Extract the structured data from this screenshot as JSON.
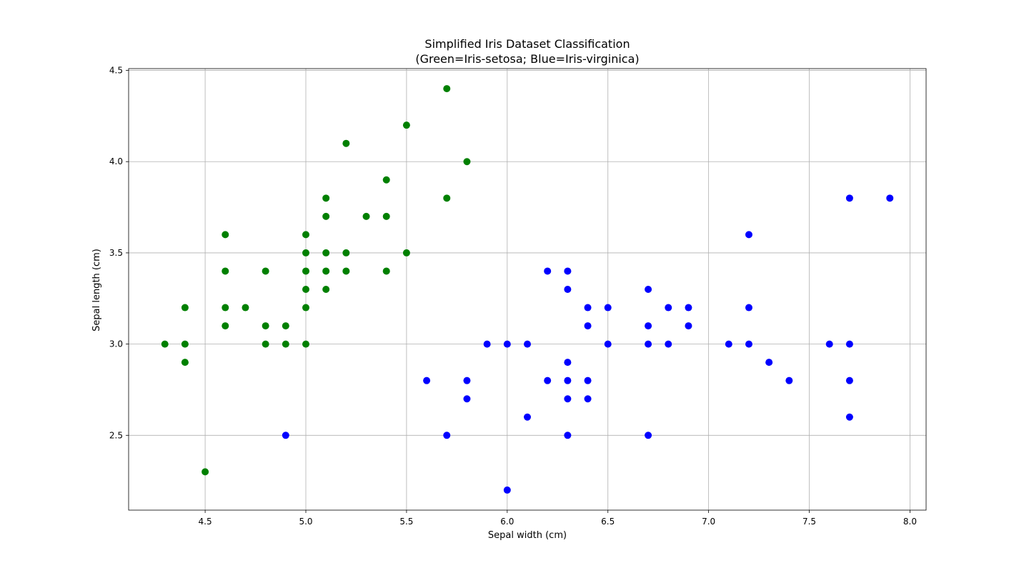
{
  "chart_data": {
    "type": "scatter",
    "title": "Simplified Iris Dataset Classification",
    "subtitle": "(Green=Iris-setosa; Blue=Iris-virginica)",
    "xlabel": "Sepal width (cm)",
    "ylabel": "Sepal length (cm)",
    "xlim": [
      4.12,
      8.08
    ],
    "ylim": [
      2.09,
      4.51
    ],
    "xticks": [
      4.5,
      5.0,
      5.5,
      6.0,
      6.5,
      7.0,
      7.5,
      8.0
    ],
    "xtick_labels": [
      "4.5",
      "5.0",
      "5.5",
      "6.0",
      "6.5",
      "7.0",
      "7.5",
      "8.0"
    ],
    "yticks": [
      2.5,
      3.0,
      3.5,
      4.0,
      4.5
    ],
    "ytick_labels": [
      "2.5",
      "3.0",
      "3.5",
      "4.0",
      "4.5"
    ],
    "grid": true,
    "series": [
      {
        "color": "#008000",
        "points": [
          [
            4.3,
            3.0
          ],
          [
            4.4,
            3.2
          ],
          [
            4.4,
            3.0
          ],
          [
            4.4,
            2.9
          ],
          [
            4.5,
            2.3
          ],
          [
            4.6,
            3.6
          ],
          [
            4.6,
            3.4
          ],
          [
            4.6,
            3.2
          ],
          [
            4.6,
            3.1
          ],
          [
            4.7,
            3.2
          ],
          [
            4.8,
            3.4
          ],
          [
            4.8,
            3.1
          ],
          [
            4.8,
            3.0
          ],
          [
            4.9,
            3.1
          ],
          [
            4.9,
            3.0
          ],
          [
            5.0,
            3.6
          ],
          [
            5.0,
            3.5
          ],
          [
            5.0,
            3.4
          ],
          [
            5.0,
            3.3
          ],
          [
            5.0,
            3.2
          ],
          [
            5.0,
            3.0
          ],
          [
            5.1,
            3.8
          ],
          [
            5.1,
            3.7
          ],
          [
            5.1,
            3.5
          ],
          [
            5.1,
            3.4
          ],
          [
            5.1,
            3.3
          ],
          [
            5.2,
            4.1
          ],
          [
            5.2,
            3.5
          ],
          [
            5.2,
            3.4
          ],
          [
            5.3,
            3.7
          ],
          [
            5.4,
            3.9
          ],
          [
            5.4,
            3.7
          ],
          [
            5.4,
            3.4
          ],
          [
            5.5,
            4.2
          ],
          [
            5.5,
            3.5
          ],
          [
            5.7,
            4.4
          ],
          [
            5.7,
            3.8
          ],
          [
            5.8,
            4.0
          ]
        ]
      },
      {
        "color": "#0000ff",
        "points": [
          [
            4.9,
            2.5
          ],
          [
            5.6,
            2.8
          ],
          [
            5.7,
            2.5
          ],
          [
            5.8,
            2.8
          ],
          [
            5.8,
            2.7
          ],
          [
            5.9,
            3.0
          ],
          [
            6.0,
            3.0
          ],
          [
            6.0,
            2.2
          ],
          [
            6.1,
            3.0
          ],
          [
            6.1,
            2.6
          ],
          [
            6.2,
            3.4
          ],
          [
            6.2,
            2.8
          ],
          [
            6.3,
            3.4
          ],
          [
            6.3,
            3.3
          ],
          [
            6.3,
            2.9
          ],
          [
            6.3,
            2.8
          ],
          [
            6.3,
            2.7
          ],
          [
            6.3,
            2.5
          ],
          [
            6.4,
            3.2
          ],
          [
            6.4,
            3.1
          ],
          [
            6.4,
            2.8
          ],
          [
            6.4,
            2.7
          ],
          [
            6.5,
            3.2
          ],
          [
            6.5,
            3.0
          ],
          [
            6.7,
            3.3
          ],
          [
            6.7,
            3.1
          ],
          [
            6.7,
            3.0
          ],
          [
            6.7,
            2.5
          ],
          [
            6.8,
            3.2
          ],
          [
            6.8,
            3.0
          ],
          [
            6.9,
            3.2
          ],
          [
            6.9,
            3.1
          ],
          [
            7.1,
            3.0
          ],
          [
            7.2,
            3.6
          ],
          [
            7.2,
            3.2
          ],
          [
            7.2,
            3.0
          ],
          [
            7.3,
            2.9
          ],
          [
            7.4,
            2.8
          ],
          [
            7.6,
            3.0
          ],
          [
            7.7,
            3.8
          ],
          [
            7.7,
            3.0
          ],
          [
            7.7,
            2.8
          ],
          [
            7.7,
            2.6
          ],
          [
            7.9,
            3.8
          ]
        ]
      }
    ]
  }
}
